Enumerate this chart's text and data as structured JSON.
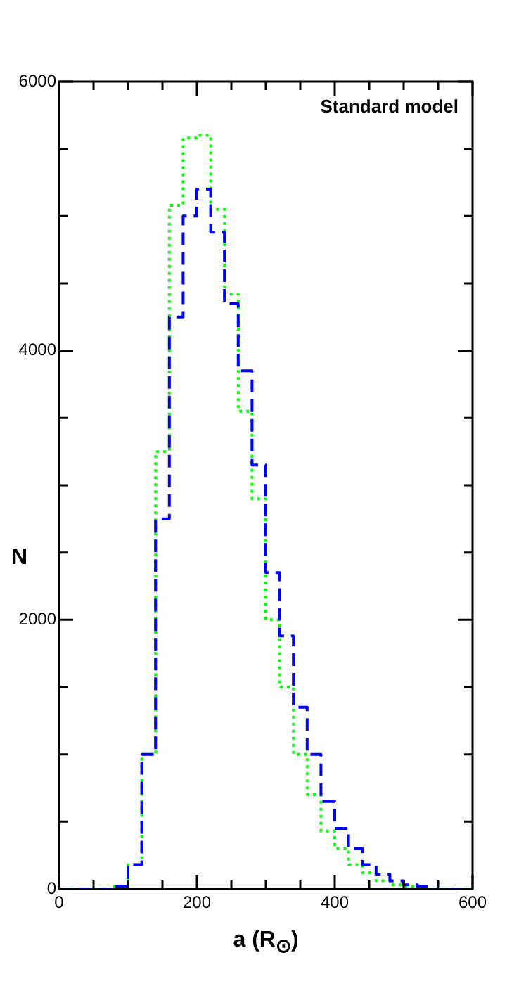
{
  "chart_data": {
    "type": "histogram",
    "xlabel": "a (R$_{⊙}$)",
    "ylabel": "N",
    "annotations": [
      "Standard model"
    ],
    "bins": [
      0,
      20,
      40,
      60,
      80,
      100,
      120,
      140,
      160,
      180,
      200,
      220,
      240,
      260,
      280,
      300,
      320,
      340,
      360,
      380,
      400,
      420,
      440,
      460,
      480,
      500,
      520,
      540,
      560,
      580,
      600
    ],
    "series": [
      {
        "color": "#0000ff",
        "line_style": "dashed",
        "values": [
          0,
          0,
          0,
          0,
          20,
          180,
          1000,
          2750,
          4250,
          5000,
          5200,
          4880,
          4350,
          3850,
          3150,
          2350,
          1880,
          1350,
          1000,
          650,
          450,
          300,
          180,
          110,
          60,
          30,
          20,
          0,
          0,
          0
        ]
      },
      {
        "color": "#00ff00",
        "line_style": "dotted",
        "values": [
          0,
          0,
          0,
          0,
          20,
          180,
          1000,
          3250,
          5080,
          5580,
          5600,
          5050,
          4420,
          3550,
          2900,
          2000,
          1500,
          1000,
          700,
          430,
          300,
          180,
          120,
          60,
          30,
          20,
          0,
          0,
          0,
          0
        ]
      }
    ],
    "xlim": [
      0,
      600
    ],
    "xticks": [
      0,
      {
        "value": 50,
        "label": null
      },
      {
        "value": 100,
        "label": null
      },
      {
        "value": 150,
        "label": null
      },
      200,
      {
        "value": 250,
        "label": null
      },
      {
        "value": 300,
        "label": null
      },
      {
        "value": 350,
        "label": null
      },
      400,
      {
        "value": 450,
        "label": null
      },
      {
        "value": 500,
        "label": null
      },
      {
        "value": 550,
        "label": null
      },
      600
    ],
    "ylim": [
      0,
      6000
    ],
    "yticks": [
      0,
      {
        "value": 500,
        "label": null
      },
      {
        "value": 1000,
        "label": null
      },
      {
        "value": 1500,
        "label": null
      },
      2000,
      {
        "value": 2500,
        "label": null
      },
      {
        "value": 3000,
        "label": null
      },
      {
        "value": 3500,
        "label": null
      },
      4000,
      {
        "value": 4500,
        "label": null
      },
      {
        "value": 5000,
        "label": null
      },
      {
        "value": 5500,
        "label": null
      },
      6000
    ],
    "grid": false,
    "legend": false
  }
}
